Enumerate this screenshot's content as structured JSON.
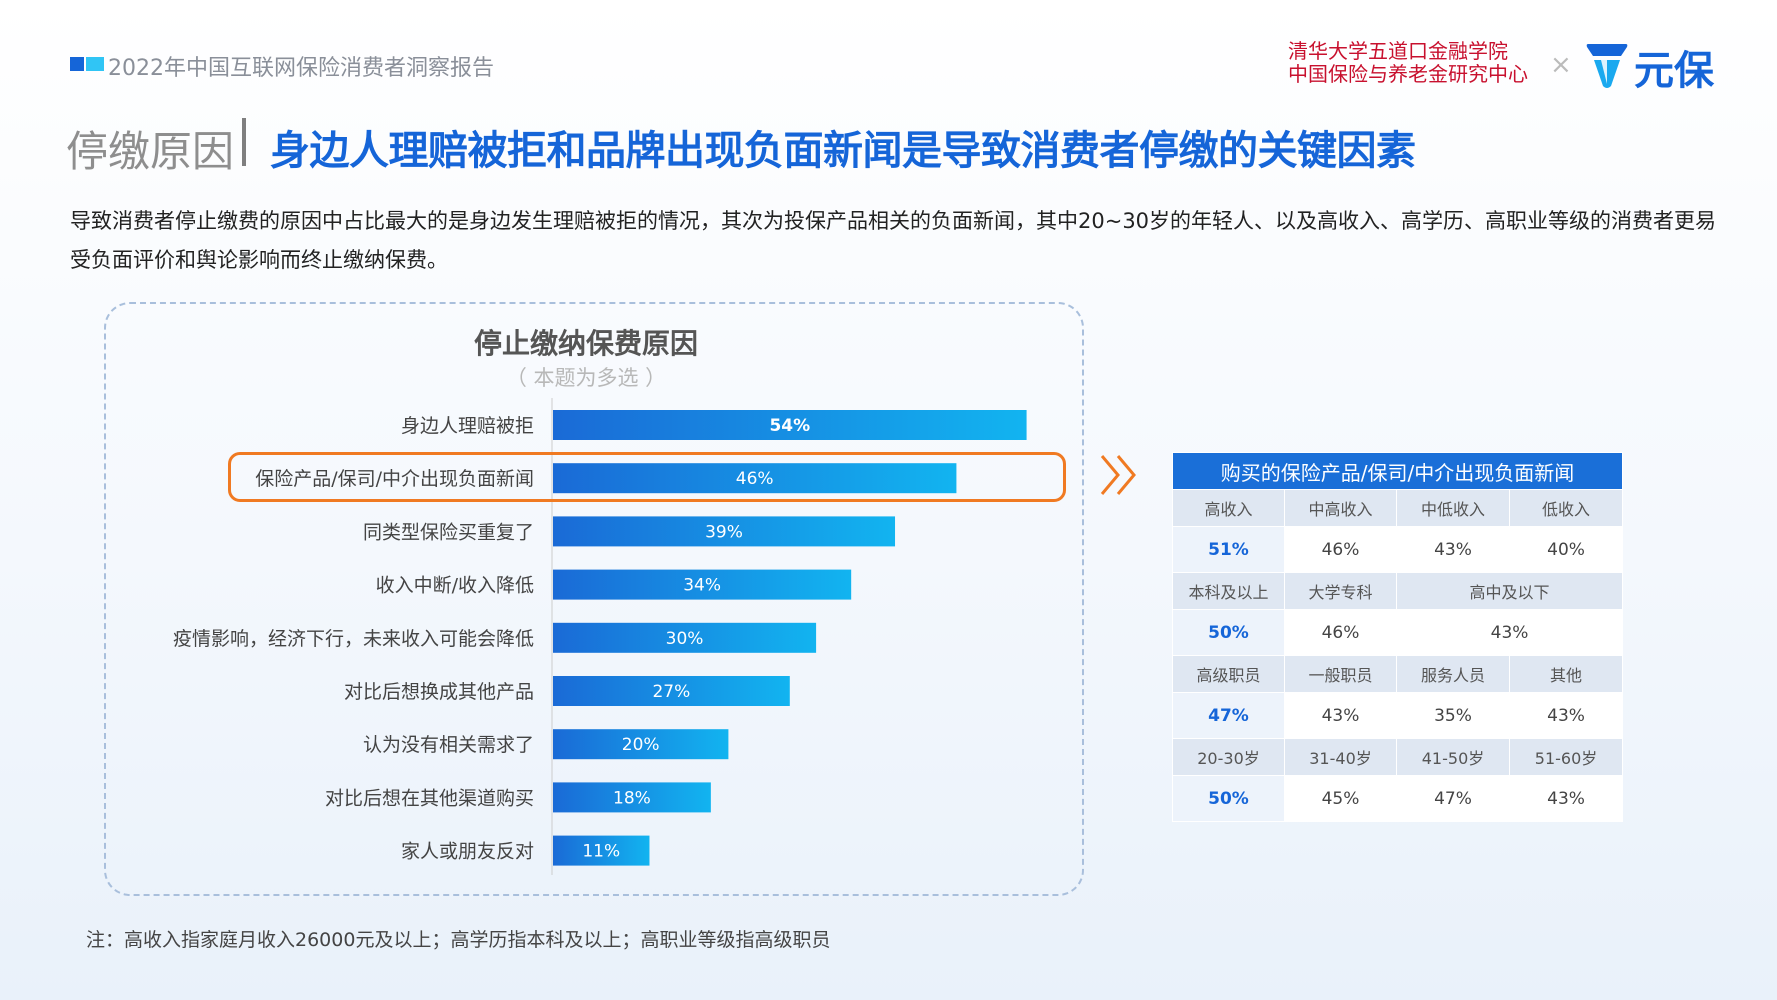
{
  "header": {
    "report_title": "2022年中国互联网保险消费者洞察报告",
    "brand_line1": "清华大学五道口金融学院",
    "brand_line2": "中国保险与养老金研究中心",
    "brand_separator": "×",
    "brand_name": "元保",
    "colors": {
      "blue": "#1565d8",
      "light_blue": "#30c5f5",
      "red": "#c8102e"
    }
  },
  "title": {
    "prefix": "停缴原因",
    "main": "身边人理赔被拒和品牌出现负面新闻是导致消费者停缴的关键因素"
  },
  "description": "导致消费者停止缴费的原因中占比最大的是身边发生理赔被拒的情况，其次为投保产品相关的负面新闻，其中20~30岁的年轻人、以及高收入、高学历、高职业等级的消费者更易受负面评价和舆论影响而终止缴纳保费。",
  "chart_data": {
    "type": "bar",
    "orientation": "horizontal",
    "title": "停止缴纳保费原因",
    "subtitle": "（ 本题为多选 ）",
    "categories": [
      "身边人理赔被拒",
      "保险产品/保司/中介出现负面新闻",
      "同类型保险买重复了",
      "收入中断/收入降低",
      "疫情影响，经济下行，未来收入可能会降低",
      "对比后想换成其他产品",
      "认为没有相关需求了",
      "对比后想在其他渠道购买",
      "家人或朋友反对"
    ],
    "values": [
      54,
      46,
      39,
      34,
      30,
      27,
      20,
      18,
      11
    ],
    "labels": [
      "54%",
      "46%",
      "39%",
      "34%",
      "30%",
      "27%",
      "20%",
      "18%",
      "11%"
    ],
    "unit": "%",
    "highlighted_index": 1,
    "bar_gradient": [
      "#1a6ad6",
      "#12b4f0"
    ],
    "highlight_color": "#f07a22"
  },
  "breakdown_table": {
    "title": "购买的保险产品/保司/中介出现负面新闻",
    "income": {
      "labels": [
        "高收入",
        "中高收入",
        "中低收入",
        "低收入"
      ],
      "values": [
        "51%",
        "46%",
        "43%",
        "40%"
      ]
    },
    "education": {
      "labels": [
        "本科及以上",
        "大学专科",
        "高中及以下"
      ],
      "values": [
        "50%",
        "46%",
        "43%"
      ]
    },
    "occupation": {
      "labels": [
        "高级职员",
        "一般职员",
        "服务人员",
        "其他"
      ],
      "values": [
        "47%",
        "43%",
        "35%",
        "43%"
      ]
    },
    "age": {
      "labels": [
        "20-30岁",
        "31-40岁",
        "41-50岁",
        "51-60岁"
      ],
      "values": [
        "50%",
        "45%",
        "47%",
        "43%"
      ]
    }
  },
  "note": "注：高收入指家庭月收入26000元及以上；高学历指本科及以上；高职业等级指高级职员"
}
